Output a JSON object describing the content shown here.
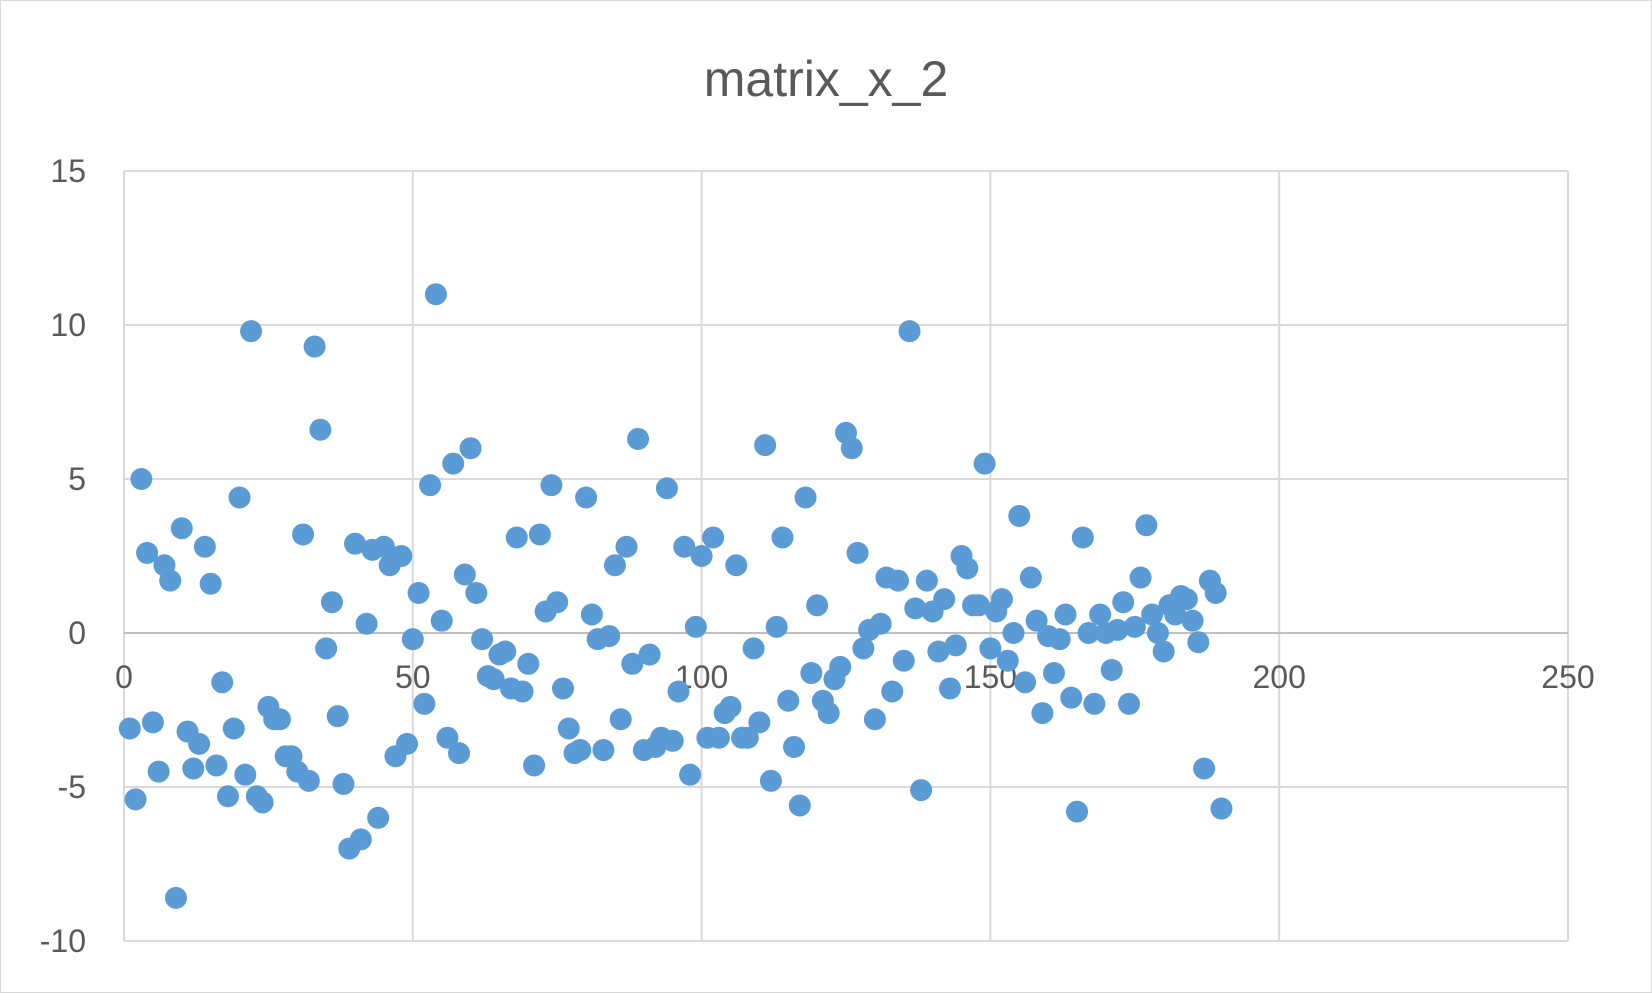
{
  "chart_data": {
    "type": "scatter",
    "title": "matrix_x_2",
    "xlabel": "",
    "ylabel": "",
    "xlim": [
      0,
      250
    ],
    "ylim": [
      -10,
      15
    ],
    "x_ticks": [
      0,
      50,
      100,
      150,
      200,
      250
    ],
    "y_ticks": [
      -10,
      -5,
      0,
      5,
      10,
      15
    ],
    "grid": true,
    "legend": "none",
    "marker_color": "#5b9bd5",
    "series": [
      {
        "points": [
          [
            1,
            -3.1
          ],
          [
            2,
            -5.4
          ],
          [
            3,
            5.0
          ],
          [
            4,
            2.6
          ],
          [
            5,
            -2.9
          ],
          [
            6,
            -4.5
          ],
          [
            7,
            2.2
          ],
          [
            8,
            1.7
          ],
          [
            9,
            -8.6
          ],
          [
            10,
            3.4
          ],
          [
            11,
            -3.2
          ],
          [
            12,
            -4.4
          ],
          [
            13,
            -3.6
          ],
          [
            14,
            2.8
          ],
          [
            15,
            1.6
          ],
          [
            16,
            -4.3
          ],
          [
            17,
            -1.6
          ],
          [
            18,
            -5.3
          ],
          [
            19,
            -3.1
          ],
          [
            20,
            4.4
          ],
          [
            21,
            -4.6
          ],
          [
            22,
            9.8
          ],
          [
            23,
            -5.3
          ],
          [
            24,
            -5.5
          ],
          [
            25,
            -2.4
          ],
          [
            26,
            -2.8
          ],
          [
            27,
            -2.8
          ],
          [
            28,
            -4.0
          ],
          [
            29,
            -4.0
          ],
          [
            30,
            -4.5
          ],
          [
            31,
            3.2
          ],
          [
            32,
            -4.8
          ],
          [
            33,
            9.3
          ],
          [
            34,
            6.6
          ],
          [
            35,
            -0.5
          ],
          [
            36,
            1.0
          ],
          [
            37,
            -2.7
          ],
          [
            38,
            -4.9
          ],
          [
            39,
            -7.0
          ],
          [
            40,
            2.9
          ],
          [
            41,
            -6.7
          ],
          [
            42,
            0.3
          ],
          [
            43,
            2.7
          ],
          [
            44,
            -6.0
          ],
          [
            45,
            2.8
          ],
          [
            46,
            2.2
          ],
          [
            47,
            -4.0
          ],
          [
            48,
            2.5
          ],
          [
            49,
            -3.6
          ],
          [
            50,
            -0.2
          ],
          [
            51,
            1.3
          ],
          [
            52,
            -2.3
          ],
          [
            53,
            4.8
          ],
          [
            54,
            11.0
          ],
          [
            55,
            0.4
          ],
          [
            56,
            -3.4
          ],
          [
            57,
            5.5
          ],
          [
            58,
            -3.9
          ],
          [
            59,
            1.9
          ],
          [
            60,
            6.0
          ],
          [
            61,
            1.3
          ],
          [
            62,
            -0.2
          ],
          [
            63,
            -1.4
          ],
          [
            64,
            -1.5
          ],
          [
            65,
            -0.7
          ],
          [
            66,
            -0.6
          ],
          [
            67,
            -1.8
          ],
          [
            68,
            3.1
          ],
          [
            69,
            -1.9
          ],
          [
            70,
            -1.0
          ],
          [
            71,
            -4.3
          ],
          [
            72,
            3.2
          ],
          [
            73,
            0.7
          ],
          [
            74,
            4.8
          ],
          [
            75,
            1.0
          ],
          [
            76,
            -1.8
          ],
          [
            77,
            -3.1
          ],
          [
            78,
            -3.9
          ],
          [
            79,
            -3.8
          ],
          [
            80,
            4.4
          ],
          [
            81,
            0.6
          ],
          [
            82,
            -0.2
          ],
          [
            83,
            -3.8
          ],
          [
            84,
            -0.1
          ],
          [
            85,
            2.2
          ],
          [
            86,
            -2.8
          ],
          [
            87,
            2.8
          ],
          [
            88,
            -1.0
          ],
          [
            89,
            6.3
          ],
          [
            90,
            -3.8
          ],
          [
            91,
            -0.7
          ],
          [
            92,
            -3.7
          ],
          [
            93,
            -3.4
          ],
          [
            94,
            4.7
          ],
          [
            95,
            -3.5
          ],
          [
            96,
            -1.9
          ],
          [
            97,
            2.8
          ],
          [
            98,
            -4.6
          ],
          [
            99,
            0.2
          ],
          [
            100,
            2.5
          ],
          [
            101,
            -3.4
          ],
          [
            102,
            3.1
          ],
          [
            103,
            -3.4
          ],
          [
            104,
            -2.6
          ],
          [
            105,
            -2.4
          ],
          [
            106,
            2.2
          ],
          [
            107,
            -3.4
          ],
          [
            108,
            -3.4
          ],
          [
            109,
            -0.5
          ],
          [
            110,
            -2.9
          ],
          [
            111,
            6.1
          ],
          [
            112,
            -4.8
          ],
          [
            113,
            0.2
          ],
          [
            114,
            3.1
          ],
          [
            115,
            -2.2
          ],
          [
            116,
            -3.7
          ],
          [
            117,
            -5.6
          ],
          [
            118,
            4.4
          ],
          [
            119,
            -1.3
          ],
          [
            120,
            0.9
          ],
          [
            121,
            -2.2
          ],
          [
            122,
            -2.6
          ],
          [
            123,
            -1.5
          ],
          [
            124,
            -1.1
          ],
          [
            125,
            6.5
          ],
          [
            126,
            6.0
          ],
          [
            127,
            2.6
          ],
          [
            128,
            -0.5
          ],
          [
            129,
            0.1
          ],
          [
            130,
            -2.8
          ],
          [
            131,
            0.3
          ],
          [
            132,
            1.8
          ],
          [
            133,
            -1.9
          ],
          [
            134,
            1.7
          ],
          [
            135,
            -0.9
          ],
          [
            136,
            9.8
          ],
          [
            137,
            0.8
          ],
          [
            138,
            -5.1
          ],
          [
            139,
            1.7
          ],
          [
            140,
            0.7
          ],
          [
            141,
            -0.6
          ],
          [
            142,
            1.1
          ],
          [
            143,
            -1.8
          ],
          [
            144,
            -0.4
          ],
          [
            145,
            2.5
          ],
          [
            146,
            2.1
          ],
          [
            147,
            0.9
          ],
          [
            148,
            0.9
          ],
          [
            149,
            5.5
          ],
          [
            150,
            -0.5
          ],
          [
            151,
            0.7
          ],
          [
            152,
            1.1
          ],
          [
            153,
            -0.9
          ],
          [
            154,
            0.0
          ],
          [
            155,
            3.8
          ],
          [
            156,
            -1.6
          ],
          [
            157,
            1.8
          ],
          [
            158,
            0.4
          ],
          [
            159,
            -2.6
          ],
          [
            160,
            -0.1
          ],
          [
            161,
            -1.3
          ],
          [
            162,
            -0.2
          ],
          [
            163,
            0.6
          ],
          [
            164,
            -2.1
          ],
          [
            165,
            -5.8
          ],
          [
            166,
            3.1
          ],
          [
            167,
            0.0
          ],
          [
            168,
            -2.3
          ],
          [
            169,
            0.6
          ],
          [
            170,
            0.0
          ],
          [
            171,
            -1.2
          ],
          [
            172,
            0.1
          ],
          [
            173,
            1.0
          ],
          [
            174,
            -2.3
          ],
          [
            175,
            0.2
          ],
          [
            176,
            1.8
          ],
          [
            177,
            3.5
          ],
          [
            178,
            0.6
          ],
          [
            179,
            0.0
          ],
          [
            180,
            -0.6
          ],
          [
            181,
            0.9
          ],
          [
            182,
            0.6
          ],
          [
            183,
            1.2
          ],
          [
            184,
            1.1
          ],
          [
            185,
            0.4
          ],
          [
            186,
            -0.3
          ],
          [
            187,
            -4.4
          ],
          [
            188,
            1.7
          ],
          [
            189,
            1.3
          ],
          [
            190,
            -5.7
          ]
        ]
      }
    ]
  }
}
